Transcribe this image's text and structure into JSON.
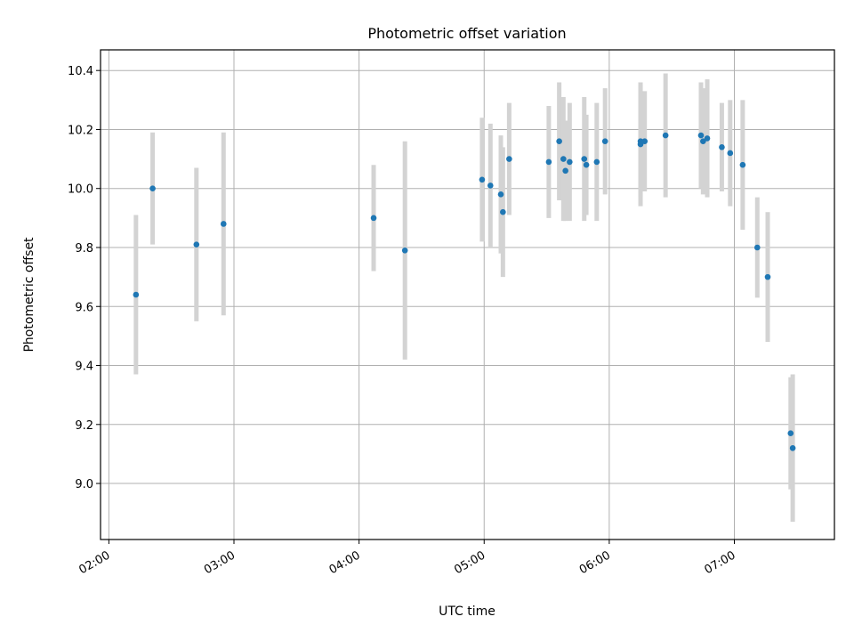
{
  "chart_data": {
    "type": "scatter",
    "title": "Photometric offset variation",
    "xlabel": "UTC time",
    "ylabel": "Photometric offset",
    "x_ticks": [
      "02:00",
      "03:00",
      "04:00",
      "05:00",
      "06:00",
      "07:00"
    ],
    "y_ticks": [
      "9.0",
      "9.2",
      "9.4",
      "9.6",
      "9.8",
      "10.0",
      "10.2",
      "10.4"
    ],
    "xlim": [
      "01:56",
      "07:48"
    ],
    "ylim": [
      8.81,
      10.47
    ],
    "grid": true,
    "colors": {
      "point": "#1f77b4",
      "errorbar": "#d3d3d3",
      "grid": "#b0b0b0"
    },
    "points": [
      {
        "x": "02:13",
        "y": 9.64,
        "err": 0.27
      },
      {
        "x": "02:21",
        "y": 10.0,
        "err": 0.19
      },
      {
        "x": "02:42",
        "y": 9.81,
        "err": 0.26
      },
      {
        "x": "02:55",
        "y": 9.88,
        "err": 0.31
      },
      {
        "x": "04:07",
        "y": 9.9,
        "err": 0.18
      },
      {
        "x": "04:22",
        "y": 9.79,
        "err": 0.37
      },
      {
        "x": "04:59",
        "y": 10.03,
        "err": 0.21
      },
      {
        "x": "05:03",
        "y": 10.01,
        "err": 0.21
      },
      {
        "x": "05:08",
        "y": 9.98,
        "err": 0.2
      },
      {
        "x": "05:09",
        "y": 9.92,
        "err": 0.22
      },
      {
        "x": "05:12",
        "y": 10.1,
        "err": 0.19
      },
      {
        "x": "05:31",
        "y": 10.09,
        "err": 0.19
      },
      {
        "x": "05:36",
        "y": 10.16,
        "err": 0.2
      },
      {
        "x": "05:38",
        "y": 10.1,
        "err": 0.21
      },
      {
        "x": "05:39",
        "y": 10.06,
        "err": 0.17
      },
      {
        "x": "05:41",
        "y": 10.09,
        "err": 0.2
      },
      {
        "x": "05:48",
        "y": 10.1,
        "err": 0.21
      },
      {
        "x": "05:49",
        "y": 10.08,
        "err": 0.17
      },
      {
        "x": "05:54",
        "y": 10.09,
        "err": 0.2
      },
      {
        "x": "05:58",
        "y": 10.16,
        "err": 0.18
      },
      {
        "x": "06:15",
        "y": 10.16,
        "err": 0.19
      },
      {
        "x": "06:15",
        "y": 10.15,
        "err": 0.21
      },
      {
        "x": "06:17",
        "y": 10.16,
        "err": 0.17
      },
      {
        "x": "06:27",
        "y": 10.18,
        "err": 0.21
      },
      {
        "x": "06:44",
        "y": 10.18,
        "err": 0.18
      },
      {
        "x": "06:45",
        "y": 10.16,
        "err": 0.18
      },
      {
        "x": "06:47",
        "y": 10.17,
        "err": 0.2
      },
      {
        "x": "06:54",
        "y": 10.14,
        "err": 0.15
      },
      {
        "x": "06:58",
        "y": 10.12,
        "err": 0.18
      },
      {
        "x": "07:04",
        "y": 10.08,
        "err": 0.22
      },
      {
        "x": "07:11",
        "y": 9.8,
        "err": 0.17
      },
      {
        "x": "07:16",
        "y": 9.7,
        "err": 0.22
      },
      {
        "x": "07:27",
        "y": 9.17,
        "err": 0.19
      },
      {
        "x": "07:28",
        "y": 9.12,
        "err": 0.25
      }
    ]
  }
}
